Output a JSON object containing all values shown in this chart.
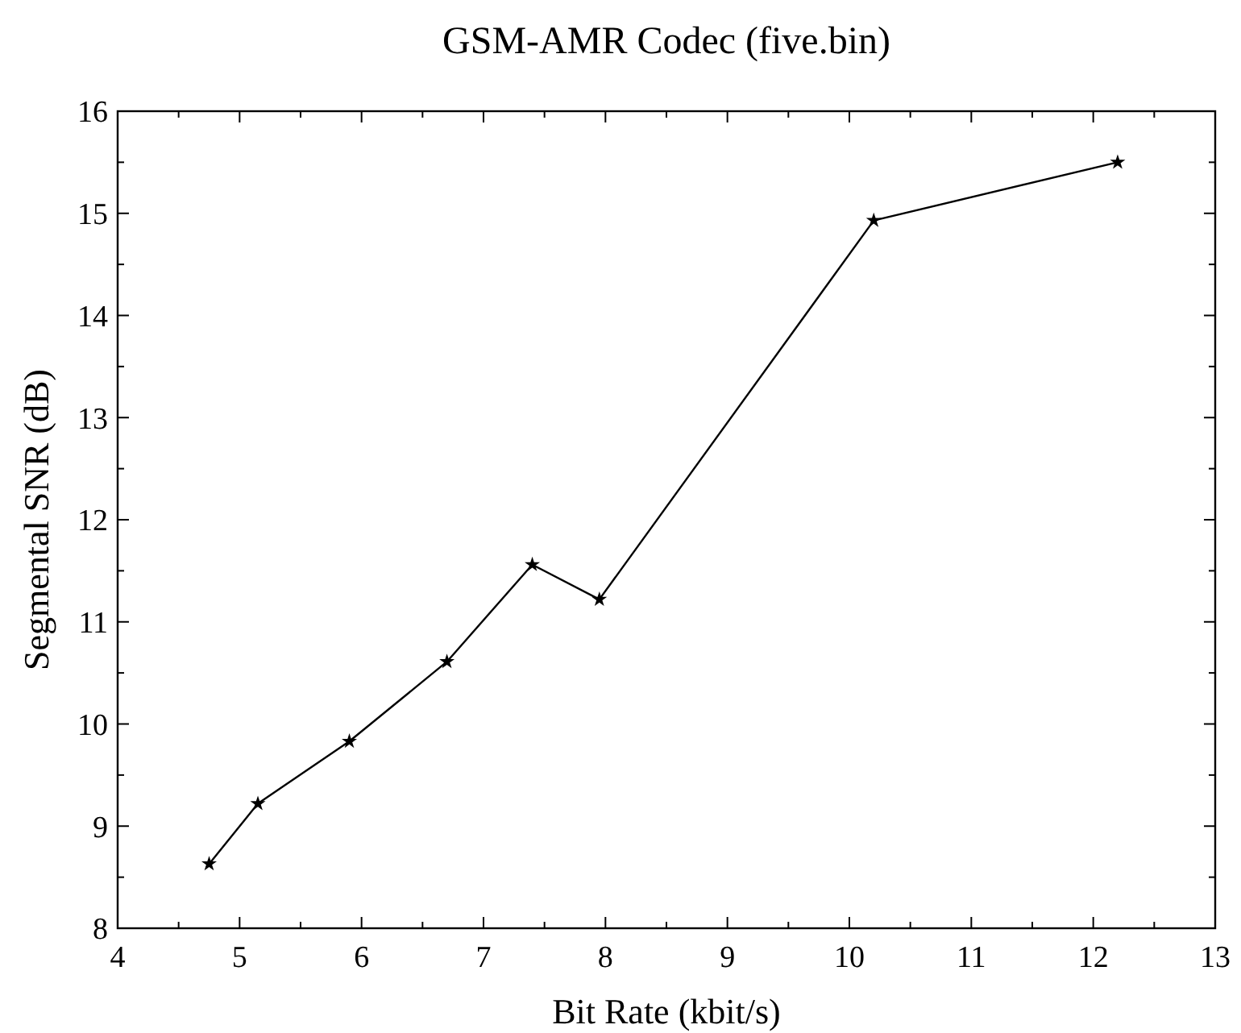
{
  "chart_data": {
    "type": "line",
    "title": "GSM-AMR Codec (five.bin)",
    "xlabel": "Bit Rate (kbit/s)",
    "ylabel": "Segmental SNR (dB)",
    "x": [
      4.75,
      5.15,
      5.9,
      6.7,
      7.4,
      7.95,
      10.2,
      12.2
    ],
    "series": [
      {
        "color": "#000000",
        "values": [
          8.63,
          9.22,
          9.83,
          10.61,
          11.56,
          11.22,
          14.93,
          15.5
        ]
      }
    ],
    "xlim": [
      4,
      13
    ],
    "ylim": [
      8,
      16
    ],
    "xticks": [
      4,
      {
        "value": 4.5,
        "label": null
      },
      5,
      {
        "value": 5.5,
        "label": null
      },
      6,
      {
        "value": 6.5,
        "label": null
      },
      7,
      {
        "value": 7.5,
        "label": null
      },
      8,
      {
        "value": 8.5,
        "label": null
      },
      9,
      {
        "value": 9.5,
        "label": null
      },
      10,
      {
        "value": 10.5,
        "label": null
      },
      11,
      {
        "value": 11.5,
        "label": null
      },
      12,
      {
        "value": 12.5,
        "label": null
      },
      13
    ],
    "yticks": [
      8,
      {
        "value": 8.5,
        "label": null
      },
      9,
      {
        "value": 9.5,
        "label": null
      },
      10,
      {
        "value": 10.5,
        "label": null
      },
      11,
      {
        "value": 11.5,
        "label": null
      },
      12,
      {
        "value": 12.5,
        "label": null
      },
      13,
      {
        "value": 13.5,
        "label": null
      },
      14,
      {
        "value": 14.5,
        "label": null
      },
      15,
      {
        "value": 15.5,
        "label": null
      },
      16
    ],
    "grid": false,
    "marker": "star",
    "line_style": "solid"
  }
}
